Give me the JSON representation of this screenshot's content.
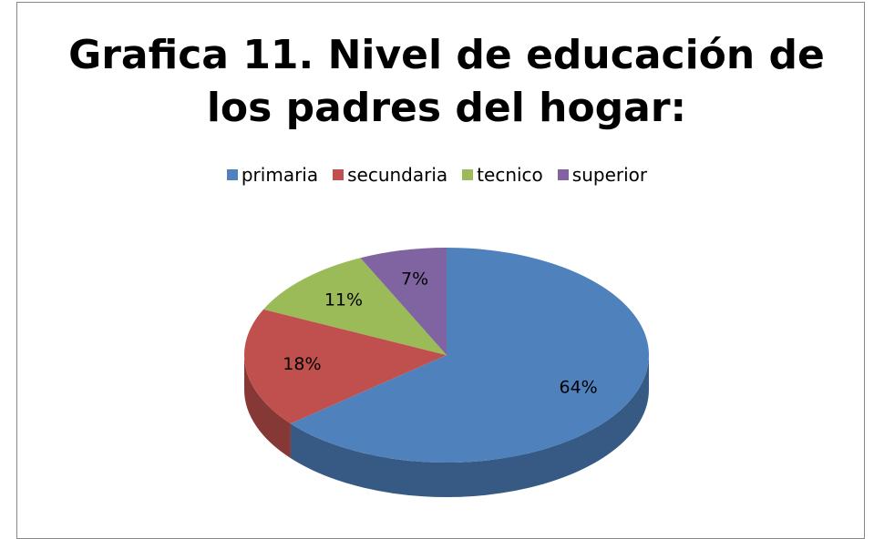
{
  "chart_data": {
    "type": "pie",
    "title": "Grafica 11. Nivel de educación de los padres del hogar:",
    "categories": [
      "primaria",
      "secundaria",
      "tecnico",
      "superior"
    ],
    "values": [
      64,
      18,
      11,
      7
    ],
    "value_labels": [
      "64%",
      "18%",
      "11%",
      "7%"
    ],
    "colors": [
      "#4f81bd",
      "#c0504d",
      "#9bbb59",
      "#8064a2"
    ],
    "legend": "top"
  }
}
